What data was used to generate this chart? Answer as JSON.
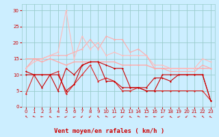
{
  "x": [
    0,
    1,
    2,
    3,
    4,
    5,
    6,
    7,
    8,
    9,
    10,
    11,
    12,
    13,
    14,
    15,
    16,
    17,
    18,
    19,
    20,
    21,
    22,
    23
  ],
  "series": [
    {
      "y": [
        11,
        10,
        10,
        10,
        10,
        5,
        7,
        13,
        14,
        14,
        13,
        12,
        12,
        6,
        6,
        5,
        5,
        10,
        10,
        10,
        10,
        10,
        10,
        2
      ],
      "color": "#cc0000",
      "lw": 0.8,
      "marker": "D",
      "ms": 1.5,
      "zorder": 5
    },
    {
      "y": [
        10,
        10,
        6,
        10,
        5,
        12,
        10,
        13,
        14,
        14,
        8,
        8,
        6,
        6,
        6,
        6,
        9,
        9,
        8,
        10,
        10,
        10,
        10,
        2
      ],
      "color": "#cc0000",
      "lw": 0.8,
      "marker": "D",
      "ms": 1.5,
      "zorder": 5
    },
    {
      "y": [
        4,
        10,
        10,
        10,
        11,
        4,
        7,
        10,
        13,
        8,
        9,
        8,
        5,
        5,
        6,
        5,
        5,
        5,
        5,
        5,
        5,
        5,
        5,
        2
      ],
      "color": "#dd2222",
      "lw": 0.8,
      "marker": "D",
      "ms": 1.5,
      "zorder": 4
    },
    {
      "y": [
        12,
        15,
        14,
        15,
        14,
        13,
        14,
        14,
        14,
        14,
        14,
        14,
        13,
        13,
        13,
        13,
        12,
        12,
        12,
        12,
        12,
        12,
        12,
        12
      ],
      "color": "#ffaaaa",
      "lw": 1.0,
      "marker": "o",
      "ms": 1.5,
      "zorder": 3
    },
    {
      "y": [
        15,
        15,
        15,
        16,
        16,
        16,
        17,
        18,
        21,
        18,
        22,
        21,
        21,
        17,
        18,
        16,
        12,
        12,
        11,
        11,
        11,
        11,
        13,
        12
      ],
      "color": "#ffaaaa",
      "lw": 0.8,
      "marker": "o",
      "ms": 1.5,
      "zorder": 3
    },
    {
      "y": [
        12,
        14,
        15,
        16,
        17,
        30,
        15,
        22,
        18,
        20,
        16,
        17,
        16,
        16,
        16,
        16,
        13,
        13,
        12,
        12,
        12,
        12,
        15,
        14
      ],
      "color": "#ffbbbb",
      "lw": 0.8,
      "marker": "o",
      "ms": 1.5,
      "zorder": 3
    }
  ],
  "xlabel": "Vent moyen/en rafales ( km/h )",
  "ylim": [
    0,
    32
  ],
  "xlim": [
    -0.5,
    23.5
  ],
  "xticks": [
    0,
    1,
    2,
    3,
    4,
    5,
    6,
    7,
    8,
    9,
    10,
    11,
    12,
    13,
    14,
    15,
    16,
    17,
    18,
    19,
    20,
    21,
    22,
    23
  ],
  "yticks": [
    0,
    5,
    10,
    15,
    20,
    25,
    30
  ],
  "bg_color": "#cceeff",
  "grid_color": "#99cccc",
  "label_color": "#cc0000",
  "xlabel_fontsize": 6.5,
  "tick_fontsize": 5.0,
  "arrow_char": "←"
}
